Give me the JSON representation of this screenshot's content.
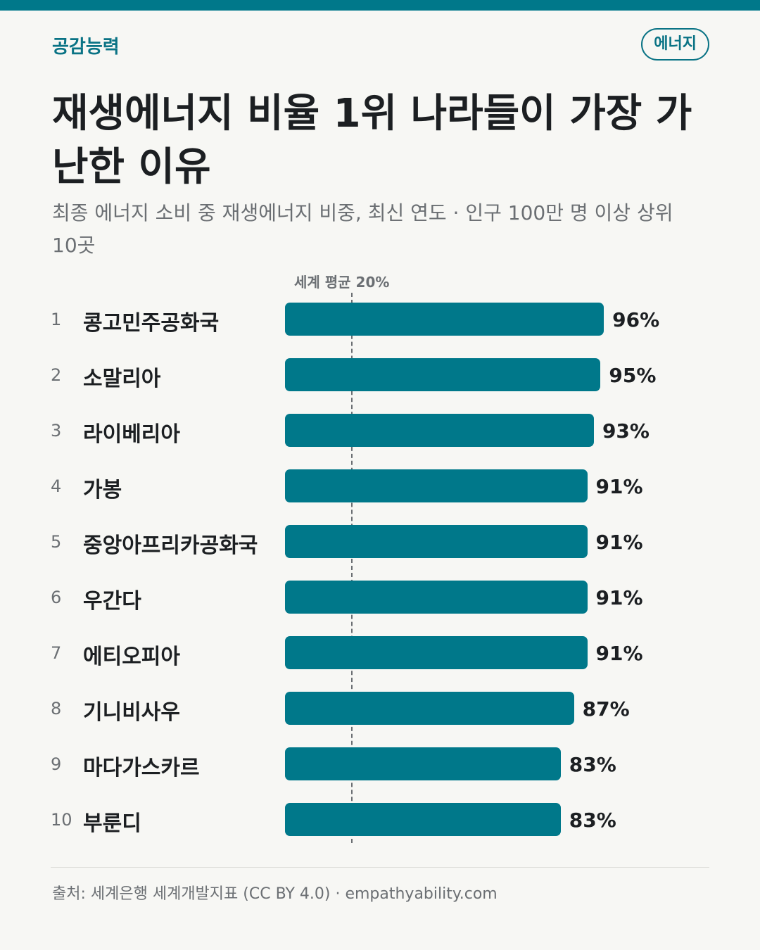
{
  "header": {
    "brand": "공감능력",
    "tag": "에너지",
    "title": "재생에너지 비율 1위 나라들이 가장 가난한 이유",
    "subtitle": "최종 에너지 소비 중 재생에너지 비중, 최신 연도 · 인구 100만 명 이상 상위 10곳"
  },
  "reference": {
    "label": "세계 평균 20%",
    "value": 20
  },
  "colors": {
    "accent": "#00788a",
    "text": "#1c1f22",
    "muted": "#6b6f73",
    "background": "#f7f7f4"
  },
  "chart_data": {
    "type": "bar",
    "orientation": "horizontal",
    "categories": [
      "콩고민주공화국",
      "소말리아",
      "라이베리아",
      "가봉",
      "중앙아프리카공화국",
      "우간다",
      "에티오피아",
      "기니비사우",
      "마다가스카르",
      "부룬디"
    ],
    "ranks": [
      "1",
      "2",
      "3",
      "4",
      "5",
      "6",
      "7",
      "8",
      "9",
      "10"
    ],
    "values": [
      96,
      95,
      93,
      91,
      91,
      91,
      91,
      87,
      83,
      83
    ],
    "value_labels": [
      "96%",
      "95%",
      "93%",
      "91%",
      "91%",
      "91%",
      "91%",
      "87%",
      "83%",
      "83%"
    ],
    "xlim": [
      0,
      100
    ],
    "reference_line": 20
  },
  "footer": {
    "source": "출처: 세계은행 세계개발지표 (CC BY 4.0) · empathyability.com"
  }
}
